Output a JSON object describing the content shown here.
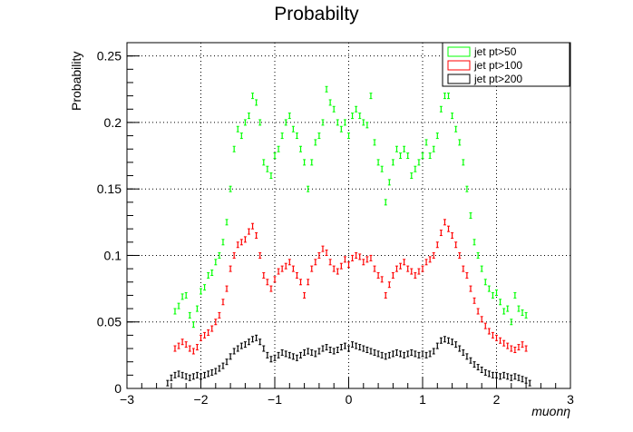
{
  "chart_data": {
    "type": "scatter",
    "title": "Probabilty",
    "xlabel": "muonη",
    "ylabel": "Probability",
    "xlim": [
      -3,
      3
    ],
    "ylim": [
      0,
      0.26
    ],
    "x_ticks": [
      -3,
      -2,
      -1,
      0,
      1,
      2,
      3
    ],
    "x_tick_labels": [
      "−3",
      "−2",
      "−1",
      "0",
      "1",
      "2",
      "3"
    ],
    "y_ticks": [
      0,
      0.05,
      0.1,
      0.15,
      0.2,
      0.25
    ],
    "y_tick_labels": [
      "0",
      "0.05",
      "0.1",
      "0.15",
      "0.2",
      "0.25"
    ],
    "grid": true,
    "legend_position": "top-right",
    "series": [
      {
        "name": "jet pt>50",
        "color": "#00ff00",
        "points": [
          [
            -2.35,
            0.058
          ],
          [
            -2.3,
            0.062
          ],
          [
            -2.25,
            0.069
          ],
          [
            -2.2,
            0.07
          ],
          [
            -2.15,
            0.055
          ],
          [
            -2.1,
            0.048
          ],
          [
            -2.05,
            0.06
          ],
          [
            -2.0,
            0.073
          ],
          [
            -1.95,
            0.076
          ],
          [
            -1.9,
            0.085
          ],
          [
            -1.85,
            0.087
          ],
          [
            -1.8,
            0.095
          ],
          [
            -1.75,
            0.1
          ],
          [
            -1.7,
            0.11
          ],
          [
            -1.65,
            0.125
          ],
          [
            -1.6,
            0.15
          ],
          [
            -1.55,
            0.18
          ],
          [
            -1.5,
            0.195
          ],
          [
            -1.45,
            0.19
          ],
          [
            -1.4,
            0.2
          ],
          [
            -1.35,
            0.205
          ],
          [
            -1.3,
            0.22
          ],
          [
            -1.25,
            0.215
          ],
          [
            -1.2,
            0.2
          ],
          [
            -1.15,
            0.17
          ],
          [
            -1.1,
            0.165
          ],
          [
            -1.05,
            0.16
          ],
          [
            -1.0,
            0.175
          ],
          [
            -0.95,
            0.18
          ],
          [
            -0.9,
            0.19
          ],
          [
            -0.85,
            0.2
          ],
          [
            -0.8,
            0.205
          ],
          [
            -0.75,
            0.195
          ],
          [
            -0.7,
            0.19
          ],
          [
            -0.65,
            0.18
          ],
          [
            -0.6,
            0.17
          ],
          [
            -0.55,
            0.15
          ],
          [
            -0.5,
            0.17
          ],
          [
            -0.45,
            0.185
          ],
          [
            -0.4,
            0.19
          ],
          [
            -0.35,
            0.2
          ],
          [
            -0.3,
            0.225
          ],
          [
            -0.25,
            0.215
          ],
          [
            -0.2,
            0.21
          ],
          [
            -0.15,
            0.2
          ],
          [
            -0.1,
            0.195
          ],
          [
            -0.05,
            0.2
          ],
          [
            0.0,
            0.19
          ],
          [
            0.05,
            0.205
          ],
          [
            0.1,
            0.21
          ],
          [
            0.15,
            0.205
          ],
          [
            0.2,
            0.2
          ],
          [
            0.25,
            0.198
          ],
          [
            0.3,
            0.22
          ],
          [
            0.35,
            0.185
          ],
          [
            0.4,
            0.17
          ],
          [
            0.45,
            0.165
          ],
          [
            0.5,
            0.14
          ],
          [
            0.55,
            0.155
          ],
          [
            0.6,
            0.17
          ],
          [
            0.65,
            0.18
          ],
          [
            0.7,
            0.175
          ],
          [
            0.75,
            0.18
          ],
          [
            0.8,
            0.175
          ],
          [
            0.85,
            0.16
          ],
          [
            0.9,
            0.165
          ],
          [
            0.95,
            0.17
          ],
          [
            1.0,
            0.175
          ],
          [
            1.05,
            0.185
          ],
          [
            1.1,
            0.175
          ],
          [
            1.15,
            0.18
          ],
          [
            1.2,
            0.19
          ],
          [
            1.25,
            0.21
          ],
          [
            1.3,
            0.22
          ],
          [
            1.35,
            0.22
          ],
          [
            1.4,
            0.205
          ],
          [
            1.45,
            0.195
          ],
          [
            1.5,
            0.185
          ],
          [
            1.55,
            0.17
          ],
          [
            1.6,
            0.15
          ],
          [
            1.65,
            0.13
          ],
          [
            1.7,
            0.11
          ],
          [
            1.75,
            0.1
          ],
          [
            1.8,
            0.09
          ],
          [
            1.85,
            0.08
          ],
          [
            1.9,
            0.075
          ],
          [
            1.95,
            0.07
          ],
          [
            2.0,
            0.072
          ],
          [
            2.05,
            0.065
          ],
          [
            2.1,
            0.058
          ],
          [
            2.15,
            0.06
          ],
          [
            2.2,
            0.05
          ],
          [
            2.25,
            0.07
          ],
          [
            2.3,
            0.06
          ],
          [
            2.35,
            0.057
          ],
          [
            2.4,
            0.055
          ]
        ]
      },
      {
        "name": "jet pt>100",
        "color": "#ff0000",
        "points": [
          [
            -2.35,
            0.03
          ],
          [
            -2.3,
            0.032
          ],
          [
            -2.25,
            0.035
          ],
          [
            -2.2,
            0.033
          ],
          [
            -2.15,
            0.03
          ],
          [
            -2.1,
            0.028
          ],
          [
            -2.05,
            0.031
          ],
          [
            -2.0,
            0.038
          ],
          [
            -1.95,
            0.04
          ],
          [
            -1.9,
            0.042
          ],
          [
            -1.85,
            0.045
          ],
          [
            -1.8,
            0.05
          ],
          [
            -1.75,
            0.055
          ],
          [
            -1.7,
            0.065
          ],
          [
            -1.65,
            0.075
          ],
          [
            -1.6,
            0.09
          ],
          [
            -1.55,
            0.1
          ],
          [
            -1.5,
            0.108
          ],
          [
            -1.45,
            0.11
          ],
          [
            -1.4,
            0.112
          ],
          [
            -1.35,
            0.118
          ],
          [
            -1.3,
            0.122
          ],
          [
            -1.25,
            0.115
          ],
          [
            -1.2,
            0.1
          ],
          [
            -1.15,
            0.085
          ],
          [
            -1.1,
            0.08
          ],
          [
            -1.05,
            0.075
          ],
          [
            -1.0,
            0.082
          ],
          [
            -0.95,
            0.088
          ],
          [
            -0.9,
            0.09
          ],
          [
            -0.85,
            0.092
          ],
          [
            -0.8,
            0.095
          ],
          [
            -0.75,
            0.09
          ],
          [
            -0.7,
            0.085
          ],
          [
            -0.65,
            0.08
          ],
          [
            -0.6,
            0.07
          ],
          [
            -0.55,
            0.08
          ],
          [
            -0.5,
            0.09
          ],
          [
            -0.45,
            0.095
          ],
          [
            -0.4,
            0.1
          ],
          [
            -0.35,
            0.105
          ],
          [
            -0.3,
            0.102
          ],
          [
            -0.25,
            0.095
          ],
          [
            -0.2,
            0.09
          ],
          [
            -0.15,
            0.088
          ],
          [
            -0.1,
            0.092
          ],
          [
            -0.05,
            0.097
          ],
          [
            0.0,
            0.093
          ],
          [
            0.05,
            0.098
          ],
          [
            0.1,
            0.1
          ],
          [
            0.15,
            0.099
          ],
          [
            0.2,
            0.095
          ],
          [
            0.25,
            0.097
          ],
          [
            0.3,
            0.098
          ],
          [
            0.35,
            0.09
          ],
          [
            0.4,
            0.085
          ],
          [
            0.45,
            0.082
          ],
          [
            0.5,
            0.07
          ],
          [
            0.55,
            0.078
          ],
          [
            0.6,
            0.085
          ],
          [
            0.65,
            0.09
          ],
          [
            0.7,
            0.092
          ],
          [
            0.75,
            0.095
          ],
          [
            0.8,
            0.09
          ],
          [
            0.85,
            0.088
          ],
          [
            0.9,
            0.085
          ],
          [
            0.95,
            0.088
          ],
          [
            1.0,
            0.09
          ],
          [
            1.05,
            0.095
          ],
          [
            1.1,
            0.097
          ],
          [
            1.15,
            0.1
          ],
          [
            1.2,
            0.108
          ],
          [
            1.25,
            0.117
          ],
          [
            1.3,
            0.125
          ],
          [
            1.35,
            0.12
          ],
          [
            1.4,
            0.115
          ],
          [
            1.45,
            0.108
          ],
          [
            1.5,
            0.1
          ],
          [
            1.55,
            0.09
          ],
          [
            1.6,
            0.085
          ],
          [
            1.65,
            0.075
          ],
          [
            1.7,
            0.066
          ],
          [
            1.75,
            0.058
          ],
          [
            1.8,
            0.052
          ],
          [
            1.85,
            0.047
          ],
          [
            1.9,
            0.043
          ],
          [
            1.95,
            0.04
          ],
          [
            2.0,
            0.038
          ],
          [
            2.05,
            0.036
          ],
          [
            2.1,
            0.034
          ],
          [
            2.15,
            0.032
          ],
          [
            2.2,
            0.03
          ],
          [
            2.25,
            0.029
          ],
          [
            2.3,
            0.031
          ],
          [
            2.35,
            0.033
          ],
          [
            2.4,
            0.03
          ]
        ]
      },
      {
        "name": "jet pt>200",
        "color": "#000000",
        "points": [
          [
            -2.45,
            0.004
          ],
          [
            -2.4,
            0.008
          ],
          [
            -2.35,
            0.01
          ],
          [
            -2.3,
            0.011
          ],
          [
            -2.25,
            0.01
          ],
          [
            -2.2,
            0.009
          ],
          [
            -2.15,
            0.008
          ],
          [
            -2.1,
            0.009
          ],
          [
            -2.05,
            0.01
          ],
          [
            -2.0,
            0.009
          ],
          [
            -1.95,
            0.01
          ],
          [
            -1.9,
            0.011
          ],
          [
            -1.85,
            0.012
          ],
          [
            -1.8,
            0.013
          ],
          [
            -1.75,
            0.015
          ],
          [
            -1.7,
            0.017
          ],
          [
            -1.65,
            0.02
          ],
          [
            -1.6,
            0.024
          ],
          [
            -1.55,
            0.028
          ],
          [
            -1.5,
            0.03
          ],
          [
            -1.45,
            0.032
          ],
          [
            -1.4,
            0.033
          ],
          [
            -1.35,
            0.035
          ],
          [
            -1.3,
            0.037
          ],
          [
            -1.25,
            0.038
          ],
          [
            -1.2,
            0.035
          ],
          [
            -1.15,
            0.03
          ],
          [
            -1.1,
            0.025
          ],
          [
            -1.05,
            0.022
          ],
          [
            -1.0,
            0.023
          ],
          [
            -0.95,
            0.025
          ],
          [
            -0.9,
            0.027
          ],
          [
            -0.85,
            0.026
          ],
          [
            -0.8,
            0.025
          ],
          [
            -0.75,
            0.024
          ],
          [
            -0.7,
            0.023
          ],
          [
            -0.65,
            0.025
          ],
          [
            -0.6,
            0.027
          ],
          [
            -0.55,
            0.028
          ],
          [
            -0.5,
            0.027
          ],
          [
            -0.45,
            0.026
          ],
          [
            -0.4,
            0.028
          ],
          [
            -0.35,
            0.03
          ],
          [
            -0.3,
            0.031
          ],
          [
            -0.25,
            0.029
          ],
          [
            -0.2,
            0.028
          ],
          [
            -0.15,
            0.029
          ],
          [
            -0.1,
            0.031
          ],
          [
            -0.05,
            0.032
          ],
          [
            0.0,
            0.03
          ],
          [
            0.05,
            0.033
          ],
          [
            0.1,
            0.032
          ],
          [
            0.15,
            0.031
          ],
          [
            0.2,
            0.03
          ],
          [
            0.25,
            0.029
          ],
          [
            0.3,
            0.028
          ],
          [
            0.35,
            0.027
          ],
          [
            0.4,
            0.026
          ],
          [
            0.45,
            0.025
          ],
          [
            0.5,
            0.024
          ],
          [
            0.55,
            0.025
          ],
          [
            0.6,
            0.026
          ],
          [
            0.65,
            0.027
          ],
          [
            0.7,
            0.026
          ],
          [
            0.75,
            0.025
          ],
          [
            0.8,
            0.026
          ],
          [
            0.85,
            0.027
          ],
          [
            0.9,
            0.026
          ],
          [
            0.95,
            0.025
          ],
          [
            1.0,
            0.026
          ],
          [
            1.05,
            0.025
          ],
          [
            1.1,
            0.026
          ],
          [
            1.15,
            0.028
          ],
          [
            1.2,
            0.032
          ],
          [
            1.25,
            0.036
          ],
          [
            1.3,
            0.037
          ],
          [
            1.35,
            0.036
          ],
          [
            1.4,
            0.035
          ],
          [
            1.45,
            0.033
          ],
          [
            1.5,
            0.03
          ],
          [
            1.55,
            0.027
          ],
          [
            1.6,
            0.024
          ],
          [
            1.65,
            0.021
          ],
          [
            1.7,
            0.018
          ],
          [
            1.75,
            0.016
          ],
          [
            1.8,
            0.014
          ],
          [
            1.85,
            0.012
          ],
          [
            1.9,
            0.011
          ],
          [
            1.95,
            0.01
          ],
          [
            2.0,
            0.01
          ],
          [
            2.05,
            0.009
          ],
          [
            2.1,
            0.01
          ],
          [
            2.15,
            0.009
          ],
          [
            2.2,
            0.008
          ],
          [
            2.25,
            0.009
          ],
          [
            2.3,
            0.008
          ],
          [
            2.35,
            0.007
          ],
          [
            2.4,
            0.006
          ],
          [
            2.45,
            0.004
          ]
        ]
      }
    ]
  }
}
